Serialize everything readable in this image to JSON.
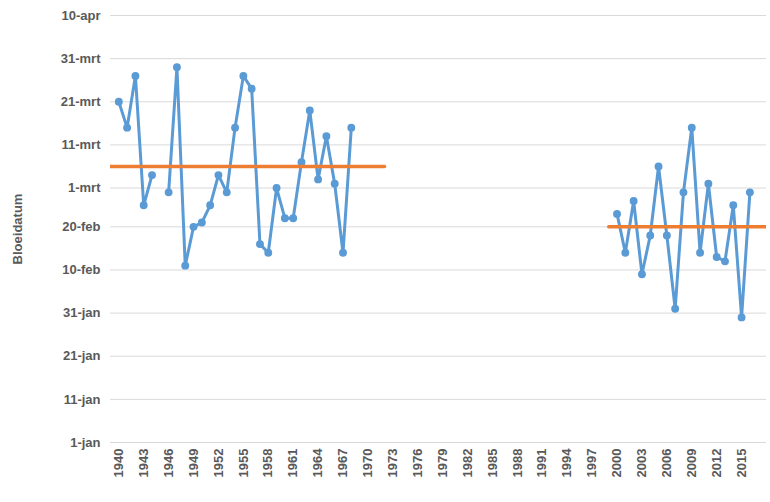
{
  "chart_data": {
    "type": "line",
    "y_label": "Bloeidatum",
    "grid": true,
    "xlim": [
      1939,
      2018
    ],
    "xticks": [
      1940,
      1943,
      1946,
      1949,
      1952,
      1955,
      1958,
      1961,
      1964,
      1967,
      1970,
      1973,
      1976,
      1979,
      1982,
      1985,
      1988,
      1991,
      1994,
      1997,
      2000,
      2003,
      2006,
      2009,
      2012,
      2015
    ],
    "ylim": [
      1,
      100
    ],
    "yticks": [
      {
        "value": 1,
        "label": "1-jan"
      },
      {
        "value": 11,
        "label": "11-jan"
      },
      {
        "value": 21,
        "label": "21-jan"
      },
      {
        "value": 31,
        "label": "31-jan"
      },
      {
        "value": 41,
        "label": "10-feb"
      },
      {
        "value": 51,
        "label": "20-feb"
      },
      {
        "value": 60,
        "label": "1-mrt"
      },
      {
        "value": 70,
        "label": "11-mrt"
      },
      {
        "value": 80,
        "label": "21-mrt"
      },
      {
        "value": 90,
        "label": "31-mrt"
      },
      {
        "value": 100,
        "label": "10-apr"
      }
    ],
    "series": [
      {
        "color": "#5b9bd5",
        "marker": "circle",
        "x": [
          1940,
          1941,
          1942,
          1943,
          1944,
          1945,
          1946,
          1947,
          1948,
          1949,
          1950,
          1951,
          1952,
          1953,
          1954,
          1955,
          1956,
          1957,
          1958,
          1959,
          1960,
          1961,
          1962,
          1963,
          1964,
          1965,
          1966,
          1967,
          1968
        ],
        "values": [
          80,
          74,
          86,
          56,
          63,
          null,
          59,
          88,
          42,
          51,
          52,
          56,
          63,
          59,
          74,
          86,
          83,
          47,
          45,
          60,
          53,
          53,
          66,
          78,
          62,
          72,
          61,
          45,
          74
        ]
      },
      {
        "color": "#5b9bd5",
        "marker": "circle",
        "x": [
          2000,
          2001,
          2002,
          2003,
          2004,
          2005,
          2006,
          2007,
          2008,
          2009,
          2010,
          2011,
          2012,
          2013,
          2014,
          2015,
          2016
        ],
        "values": [
          54,
          45,
          57,
          40,
          49,
          65,
          49,
          32,
          59,
          74,
          45,
          61,
          44,
          43,
          56,
          30,
          59
        ]
      },
      {
        "color": "#ed7d31",
        "marker": "none",
        "x": [
          1939,
          1972
        ],
        "values": [
          65,
          65
        ]
      },
      {
        "color": "#ed7d31",
        "marker": "none",
        "x": [
          1999,
          2018
        ],
        "values": [
          51,
          51
        ]
      }
    ]
  }
}
